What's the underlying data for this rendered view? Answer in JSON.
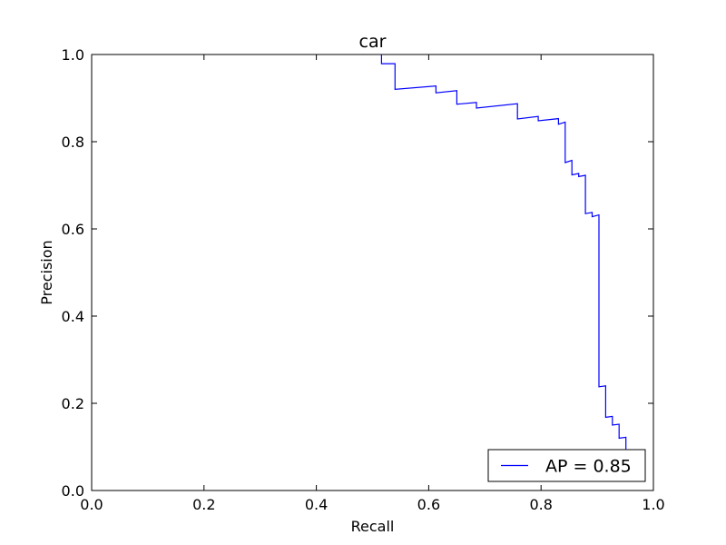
{
  "chart_data": {
    "type": "line",
    "title": "car",
    "xlabel": "Recall",
    "ylabel": "Precision",
    "xlim": [
      0.0,
      1.0
    ],
    "ylim": [
      0.0,
      1.0
    ],
    "x_ticks": [
      "0.0",
      "0.2",
      "0.4",
      "0.6",
      "0.8",
      "1.0"
    ],
    "y_ticks": [
      "0.0",
      "0.2",
      "0.4",
      "0.6",
      "0.8",
      "1.0"
    ],
    "grid": false,
    "legend_position": "lower-right",
    "series": [
      {
        "name": "AP = 0.85",
        "color": "#0000ff",
        "step": true,
        "x": [
          0.516,
          0.516,
          0.54,
          0.54,
          0.613,
          0.613,
          0.65,
          0.65,
          0.685,
          0.685,
          0.758,
          0.758,
          0.795,
          0.795,
          0.831,
          0.831,
          0.843,
          0.843,
          0.855,
          0.855,
          0.867,
          0.867,
          0.879,
          0.879,
          0.891,
          0.891,
          0.903,
          0.903,
          0.915,
          0.915,
          0.927,
          0.927,
          0.939,
          0.939,
          0.951,
          0.951
        ],
        "y": [
          1.0,
          0.979,
          0.979,
          0.92,
          0.928,
          0.912,
          0.917,
          0.886,
          0.89,
          0.877,
          0.887,
          0.852,
          0.858,
          0.848,
          0.853,
          0.84,
          0.845,
          0.752,
          0.757,
          0.724,
          0.727,
          0.72,
          0.723,
          0.635,
          0.638,
          0.628,
          0.632,
          0.238,
          0.24,
          0.168,
          0.17,
          0.15,
          0.152,
          0.12,
          0.122,
          0.095
        ]
      }
    ]
  }
}
